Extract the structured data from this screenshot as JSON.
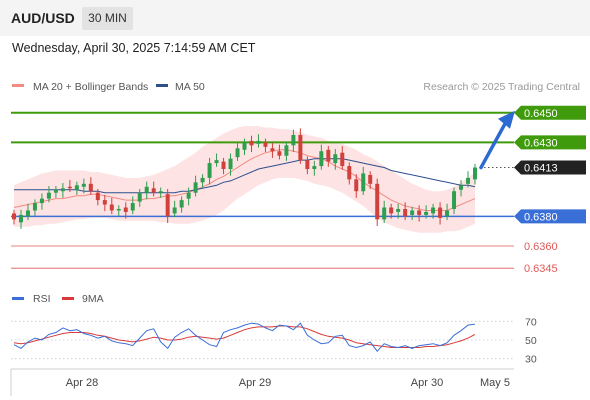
{
  "header": {
    "symbol": "AUD/USD",
    "timeframe": "30 MIN",
    "datetime": "Wednesday, April 30, 2025 7:14:59 AM CET"
  },
  "legend": {
    "items": [
      {
        "label": "MA 20 + Bollinger Bands",
        "color": "#f28b82"
      },
      {
        "label": "MA 50",
        "color": "#2d4f8e"
      }
    ],
    "credit": "Research © 2025 Trading Central"
  },
  "colors": {
    "up": "#2e9e4f",
    "down": "#d0413b",
    "band": "#fde3e3",
    "ma20": "#f28b82",
    "ma50": "#2d4f8e",
    "resistance": "#3f9a0c",
    "support": "#3a6fd8",
    "weak_support": "#e05a5a",
    "last": "#222222",
    "arrow": "#2b6ad1",
    "rsi": "#3a6fd8",
    "rsi_ma": "#d83a3a"
  },
  "chart_data": [
    {
      "type": "candlestick",
      "series": [
        {
          "name": "MA 20 + Bollinger Bands"
        },
        {
          "name": "MA 50"
        }
      ],
      "y_range": [
        0.6335,
        0.6462
      ],
      "x_ticks": [
        "Apr 28",
        "Apr 29",
        "Apr 30",
        "May 5"
      ],
      "levels": [
        {
          "value": 0.645,
          "label": "0.6450",
          "kind": "resistance"
        },
        {
          "value": 0.643,
          "label": "0.6430",
          "kind": "resistance"
        },
        {
          "value": 0.6413,
          "label": "0.6413",
          "kind": "last"
        },
        {
          "value": 0.638,
          "label": "0.6380",
          "kind": "support"
        },
        {
          "value": 0.636,
          "label": "0.6360",
          "kind": "weak_support"
        },
        {
          "value": 0.6345,
          "label": "0.6345",
          "kind": "weak_support"
        }
      ],
      "projection": {
        "from": 0.6413,
        "to": 0.645
      },
      "points": [
        [
          0.6382,
          0.6378
        ],
        [
          0.6376,
          0.6381
        ],
        [
          0.638,
          0.6384
        ],
        [
          0.6384,
          0.6389
        ],
        [
          0.6389,
          0.6392
        ],
        [
          0.6392,
          0.6396
        ],
        [
          0.6396,
          0.6398
        ],
        [
          0.6397,
          0.6399
        ],
        [
          0.64,
          0.6399
        ],
        [
          0.6398,
          0.6401
        ],
        [
          0.64,
          0.6402
        ],
        [
          0.6402,
          0.6397
        ],
        [
          0.6396,
          0.6391
        ],
        [
          0.6391,
          0.6388
        ],
        [
          0.6388,
          0.6384
        ],
        [
          0.6384,
          0.6385
        ],
        [
          0.6386,
          0.6383
        ],
        [
          0.6384,
          0.6389
        ],
        [
          0.639,
          0.6396
        ],
        [
          0.6396,
          0.64
        ],
        [
          0.6399,
          0.6396
        ],
        [
          0.6396,
          0.6397
        ],
        [
          0.6395,
          0.638
        ],
        [
          0.6382,
          0.6386
        ],
        [
          0.6386,
          0.6391
        ],
        [
          0.6392,
          0.6396
        ],
        [
          0.6396,
          0.6403
        ],
        [
          0.6403,
          0.6406
        ],
        [
          0.6406,
          0.6416
        ],
        [
          0.6416,
          0.6418
        ],
        [
          0.6417,
          0.6412
        ],
        [
          0.6412,
          0.6419
        ],
        [
          0.642,
          0.6426
        ],
        [
          0.6425,
          0.643
        ],
        [
          0.6431,
          0.6428
        ],
        [
          0.6429,
          0.6431
        ],
        [
          0.643,
          0.6427
        ],
        [
          0.6426,
          0.6424
        ],
        [
          0.6424,
          0.6421
        ],
        [
          0.6421,
          0.6428
        ],
        [
          0.6428,
          0.6435
        ],
        [
          0.6435,
          0.6418
        ],
        [
          0.6418,
          0.6412
        ],
        [
          0.6412,
          0.6414
        ],
        [
          0.6414,
          0.6424
        ],
        [
          0.6425,
          0.6417
        ],
        [
          0.6416,
          0.6422
        ],
        [
          0.6423,
          0.6414
        ],
        [
          0.6414,
          0.6405
        ],
        [
          0.6405,
          0.6397
        ],
        [
          0.6397,
          0.6409
        ],
        [
          0.6408,
          0.6402
        ],
        [
          0.6402,
          0.6378
        ],
        [
          0.6378,
          0.6386
        ],
        [
          0.6386,
          0.6382
        ],
        [
          0.6383,
          0.6385
        ],
        [
          0.6385,
          0.638
        ],
        [
          0.6381,
          0.6384
        ],
        [
          0.6384,
          0.6381
        ],
        [
          0.6381,
          0.6383
        ],
        [
          0.6382,
          0.6386
        ],
        [
          0.6386,
          0.6379
        ],
        [
          0.638,
          0.6384
        ],
        [
          0.6385,
          0.6397
        ],
        [
          0.6398,
          0.6401
        ],
        [
          0.6402,
          0.6406
        ],
        [
          0.6405,
          0.6413
        ]
      ],
      "ma20": [
        0.6386,
        0.6387,
        0.6388,
        0.6389,
        0.639,
        0.6391,
        0.6392,
        0.6392,
        0.6393,
        0.6394,
        0.6394,
        0.6395,
        0.6395,
        0.6394,
        0.6393,
        0.6392,
        0.6391,
        0.6391,
        0.6391,
        0.6392,
        0.6392,
        0.6393,
        0.6394,
        0.6394,
        0.6395,
        0.6396,
        0.6398,
        0.64,
        0.6402,
        0.6405,
        0.6407,
        0.641,
        0.6413,
        0.6416,
        0.6419,
        0.6421,
        0.6423,
        0.6424,
        0.6425,
        0.6425,
        0.6424,
        0.6423,
        0.6421,
        0.642,
        0.6419,
        0.6417,
        0.6414,
        0.6412,
        0.641,
        0.6407,
        0.6403,
        0.64,
        0.6397,
        0.6394,
        0.6391,
        0.6389,
        0.6387,
        0.6386,
        0.6385,
        0.6384,
        0.6384,
        0.6384,
        0.6384,
        0.6386,
        0.6388,
        0.639,
        0.6392
      ],
      "ma50": [
        0.6398,
        0.6398,
        0.6398,
        0.6398,
        0.6398,
        0.6398,
        0.6398,
        0.6398,
        0.6398,
        0.6398,
        0.6397,
        0.6397,
        0.6397,
        0.6396,
        0.6396,
        0.6396,
        0.6396,
        0.6396,
        0.6396,
        0.6396,
        0.6396,
        0.6396,
        0.6396,
        0.6396,
        0.6397,
        0.6397,
        0.6398,
        0.6399,
        0.64,
        0.6401,
        0.6403,
        0.6404,
        0.6406,
        0.6408,
        0.641,
        0.6412,
        0.6413,
        0.6414,
        0.6415,
        0.6416,
        0.6417,
        0.6418,
        0.6418,
        0.6419,
        0.6419,
        0.6419,
        0.6419,
        0.6419,
        0.6418,
        0.6417,
        0.6416,
        0.6415,
        0.6414,
        0.6413,
        0.6411,
        0.641,
        0.6409,
        0.6408,
        0.6407,
        0.6406,
        0.6405,
        0.6404,
        0.6403,
        0.6402,
        0.6401,
        0.6401,
        0.64
      ],
      "bb_upper": [
        0.6401,
        0.6403,
        0.6405,
        0.6407,
        0.6409,
        0.641,
        0.6411,
        0.6411,
        0.6411,
        0.6411,
        0.6411,
        0.641,
        0.641,
        0.6409,
        0.6408,
        0.6407,
        0.6406,
        0.6406,
        0.6406,
        0.6407,
        0.6408,
        0.641,
        0.6412,
        0.6414,
        0.6417,
        0.642,
        0.6423,
        0.6427,
        0.643,
        0.6433,
        0.6436,
        0.6438,
        0.644,
        0.6441,
        0.6441,
        0.6441,
        0.644,
        0.644,
        0.6439,
        0.6439,
        0.6438,
        0.6437,
        0.6435,
        0.6434,
        0.6433,
        0.6431,
        0.643,
        0.6429,
        0.6427,
        0.6425,
        0.6422,
        0.642,
        0.6417,
        0.6414,
        0.6411,
        0.6408,
        0.6405,
        0.6402,
        0.64,
        0.6398,
        0.6397,
        0.6397,
        0.6398,
        0.64,
        0.6403,
        0.6406,
        0.641
      ],
      "bb_lower": [
        0.6373,
        0.6373,
        0.6373,
        0.6374,
        0.6374,
        0.6375,
        0.6375,
        0.6376,
        0.6377,
        0.6378,
        0.6378,
        0.6379,
        0.6379,
        0.6379,
        0.6378,
        0.6377,
        0.6377,
        0.6377,
        0.6377,
        0.6377,
        0.6377,
        0.6376,
        0.6376,
        0.6375,
        0.6375,
        0.6375,
        0.6376,
        0.6377,
        0.6379,
        0.6381,
        0.6384,
        0.6388,
        0.6392,
        0.6395,
        0.6398,
        0.6401,
        0.6403,
        0.6405,
        0.6406,
        0.6406,
        0.6406,
        0.6405,
        0.6404,
        0.6402,
        0.6401,
        0.64,
        0.6398,
        0.6396,
        0.6393,
        0.639,
        0.6387,
        0.6383,
        0.6379,
        0.6376,
        0.6374,
        0.6372,
        0.6371,
        0.637,
        0.6369,
        0.6369,
        0.6369,
        0.6369,
        0.637,
        0.637,
        0.6371,
        0.6373,
        0.6375
      ]
    },
    {
      "type": "line",
      "series": [
        {
          "name": "RSI"
        },
        {
          "name": "9MA"
        }
      ],
      "y_range": [
        20,
        80
      ],
      "y_ticks": [
        70,
        50,
        30
      ],
      "rsi": [
        45,
        41,
        48,
        52,
        50,
        56,
        58,
        63,
        60,
        61,
        57,
        55,
        52,
        54,
        49,
        47,
        46,
        44,
        52,
        60,
        62,
        48,
        41,
        53,
        58,
        62,
        55,
        50,
        45,
        43,
        58,
        61,
        63,
        66,
        68,
        67,
        63,
        60,
        66,
        65,
        61,
        68,
        55,
        50,
        46,
        47,
        54,
        55,
        44,
        42,
        44,
        48,
        38,
        46,
        43,
        42,
        44,
        41,
        44,
        45,
        46,
        44,
        47,
        55,
        60,
        66,
        67
      ],
      "rsi_ma": [
        47,
        46,
        47,
        49,
        51,
        53,
        55,
        57,
        58,
        58,
        58,
        57,
        55,
        54,
        52,
        50,
        49,
        48,
        49,
        51,
        53,
        52,
        50,
        50,
        51,
        53,
        54,
        53,
        52,
        51,
        52,
        55,
        58,
        61,
        63,
        64,
        64,
        64,
        65,
        65,
        64,
        64,
        62,
        59,
        56,
        54,
        53,
        52,
        50,
        47,
        46,
        45,
        44,
        43,
        42,
        42,
        42,
        42,
        42,
        43,
        43,
        44,
        45,
        47,
        49,
        52,
        56
      ]
    }
  ],
  "rsi_legend": [
    {
      "label": "RSI",
      "color": "#3a6fd8"
    },
    {
      "label": "9MA",
      "color": "#d83a3a"
    }
  ]
}
